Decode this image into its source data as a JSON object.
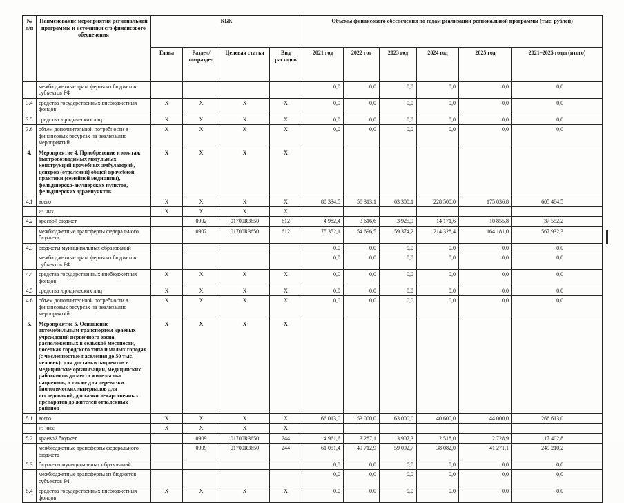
{
  "table": {
    "header": {
      "num": "№ п/п",
      "name": "Наименование мероприятия региональной программы и источники его финансового обеспечения",
      "kbk": "КБК",
      "kbk_cols": [
        "Глава",
        "Раздел/ подраздел",
        "Целевая статья",
        "Вид расходов"
      ],
      "volumes": "Объемы финансового обеспечения по годам реализации региональной программы (тыс. рублей)",
      "year_cols": [
        "2021 год",
        "2022 год",
        "2023 год",
        "2024 год",
        "2025 год",
        "2021–2025 годы (итого)"
      ]
    },
    "rows": [
      {
        "num": "",
        "label": "межбюджетные трансферты из бюджетов субъектов РФ",
        "bold": false,
        "kbk": [
          "",
          "",
          "",
          ""
        ],
        "values": [
          "0,0",
          "0,0",
          "0,0",
          "0,0",
          "0,0",
          "0,0"
        ]
      },
      {
        "num": "3.4",
        "label": "средства государственных внебюджетных фондов",
        "bold": false,
        "kbk": [
          "X",
          "X",
          "X",
          "X"
        ],
        "values": [
          "0,0",
          "0,0",
          "0,0",
          "0,0",
          "0,0",
          "0,0"
        ]
      },
      {
        "num": "3.5",
        "label": "средства юридических лиц",
        "bold": false,
        "kbk": [
          "X",
          "X",
          "X",
          "X"
        ],
        "values": [
          "0,0",
          "0,0",
          "0,0",
          "0,0",
          "0,0",
          "0,0"
        ]
      },
      {
        "num": "3.6",
        "label": "объем дополнительной потребности в финансовых ресурсах на реализацию мероприятий",
        "bold": false,
        "kbk": [
          "X",
          "X",
          "X",
          "X"
        ],
        "values": [
          "0,0",
          "0,0",
          "0,0",
          "0,0",
          "0,0",
          "0,0"
        ]
      },
      {
        "num": "4.",
        "label": "Мероприятие 4. Приобретение и монтаж быстровозводимых модульных конструкций врачебных амбулаторий, центров (отделений) общей врачебной практики (семейной медицины), фельдшерско-акушерских пунктов, фельдшерских здравпунктов",
        "bold": true,
        "kbk": [
          "X",
          "X",
          "X",
          "X"
        ],
        "values": [
          "",
          "",
          "",
          "",
          "",
          ""
        ]
      },
      {
        "num": "4.1",
        "label": "всего",
        "bold": false,
        "kbk": [
          "X",
          "X",
          "X",
          "X"
        ],
        "values": [
          "80 334,5",
          "58 313,1",
          "63 300,1",
          "228 500,0",
          "175 036,8",
          "605 484,5"
        ]
      },
      {
        "num": "",
        "label": "из них",
        "bold": false,
        "kbk": [
          "X",
          "X",
          "X",
          "X"
        ],
        "values": [
          "",
          "",
          "",
          "",
          "",
          ""
        ]
      },
      {
        "num": "4.2",
        "label": "краевой бюджет",
        "bold": false,
        "kbk": [
          "",
          "0902",
          "01700R3650",
          "612"
        ],
        "values": [
          "4 982,4",
          "3 616,6",
          "3 925,9",
          "14 171,6",
          "10 855,8",
          "37 552,2"
        ]
      },
      {
        "num": "",
        "label": "межбюджетные трансферты федерального бюджета",
        "bold": false,
        "kbk": [
          "",
          "0902",
          "01700R3650",
          "612"
        ],
        "values": [
          "75 352,1",
          "54 696,5",
          "59 374,2",
          "214 328,4",
          "164 181,0",
          "567 932,3"
        ]
      },
      {
        "num": "4.3",
        "label": "бюджеты муниципальных образований",
        "bold": false,
        "kbk": [
          "",
          "",
          "",
          ""
        ],
        "values": [
          "0,0",
          "0,0",
          "0,0",
          "0,0",
          "0,0",
          "0,0"
        ]
      },
      {
        "num": "",
        "label": "межбюджетные трансферты из бюджетов субъектов РФ",
        "bold": false,
        "kbk": [
          "",
          "",
          "",
          ""
        ],
        "values": [
          "0,0",
          "0,0",
          "0,0",
          "0,0",
          "0,0",
          "0,0"
        ]
      },
      {
        "num": "4.4",
        "label": "средства государственных внебюджетных фондов",
        "bold": false,
        "kbk": [
          "X",
          "X",
          "X",
          "X"
        ],
        "values": [
          "0,0",
          "0,0",
          "0,0",
          "0,0",
          "0,0",
          "0,0"
        ]
      },
      {
        "num": "4.5",
        "label": "средства юридических лиц",
        "bold": false,
        "kbk": [
          "X",
          "X",
          "X",
          "X"
        ],
        "values": [
          "0,0",
          "0,0",
          "0,0",
          "0,0",
          "0,0",
          "0,0"
        ]
      },
      {
        "num": "4.6",
        "label": "объем дополнительной потребности в финансовых ресурсах на реализацию мероприятий",
        "bold": false,
        "kbk": [
          "X",
          "X",
          "X",
          "X"
        ],
        "values": [
          "0,0",
          "0,0",
          "0,0",
          "0,0",
          "0,0",
          "0,0"
        ]
      },
      {
        "num": "5.",
        "label": "Мероприятие 5. Оснащение автомобильным транспортом краевых учреждений первичного звена, расположенных в сельской местности, поселках городского типа и малых городах (с численностью населения до 50 тыс. человек): для доставки пациентов в медицинские организации, медицинских работников до места жительства пациентов, а также для перевозки биологических материалов для исследований, доставки лекарственных препаратов до жителей отдаленных районов",
        "bold": true,
        "kbk": [
          "X",
          "X",
          "X",
          "X"
        ],
        "values": [
          "",
          "",
          "",
          "",
          "",
          ""
        ]
      },
      {
        "num": "5.1",
        "label": "всего",
        "bold": false,
        "kbk": [
          "X",
          "X",
          "X",
          "X"
        ],
        "values": [
          "66 013,0",
          "53 000,0",
          "63 000,0",
          "40 600,0",
          "44 000,0",
          "266 613,0"
        ]
      },
      {
        "num": "",
        "label": "из них:",
        "bold": false,
        "kbk": [
          "X",
          "X",
          "X",
          "X"
        ],
        "values": [
          "",
          "",
          "",
          "",
          "",
          ""
        ]
      },
      {
        "num": "5.2",
        "label": "краевой бюджет",
        "bold": false,
        "kbk": [
          "",
          "0909",
          "01700R3650",
          "244"
        ],
        "values": [
          "4 961,6",
          "3 287,1",
          "3 907,3",
          "2 518,0",
          "2 728,9",
          "17 402,8"
        ]
      },
      {
        "num": "",
        "label": "межбюджетные трансферты федерального бюджета",
        "bold": false,
        "kbk": [
          "",
          "0909",
          "01700R3650",
          "244"
        ],
        "values": [
          "61 051,4",
          "49 712,9",
          "59 092,7",
          "38 082,0",
          "41 271,1",
          "249 210,2"
        ]
      },
      {
        "num": "5.3",
        "label": "бюджеты муниципальных образований",
        "bold": false,
        "kbk": [
          "",
          "",
          "",
          ""
        ],
        "values": [
          "0,0",
          "0,0",
          "0,0",
          "0,0",
          "0,0",
          "0,0"
        ]
      },
      {
        "num": "",
        "label": "межбюджетные трансферты из бюджетов субъектов РФ",
        "bold": false,
        "kbk": [
          "",
          "",
          "",
          ""
        ],
        "values": [
          "0,0",
          "0,0",
          "0,0",
          "0,0",
          "0,0",
          "0,0"
        ]
      },
      {
        "num": "5.4",
        "label": "средства государственных внебюджетных фондов",
        "bold": false,
        "kbk": [
          "X",
          "X",
          "X",
          "X"
        ],
        "values": [
          "0,0",
          "0,0",
          "0,0",
          "0,0",
          "0,0",
          "0,0"
        ]
      }
    ]
  }
}
